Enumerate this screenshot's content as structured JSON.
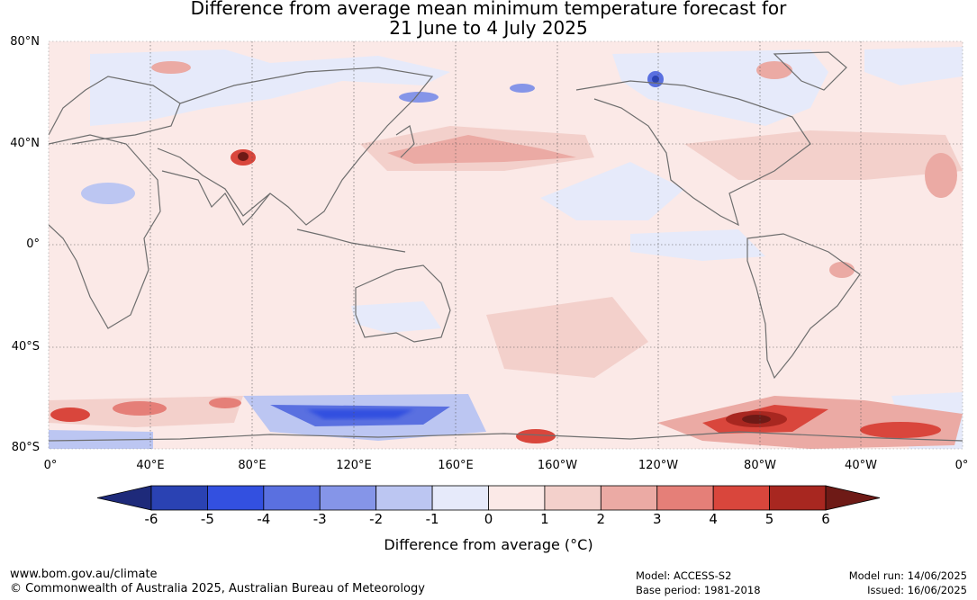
{
  "title": {
    "line1": "Difference from average mean minimum temperature forecast for",
    "line2": "21 June to 4 July 2025"
  },
  "map": {
    "lat_labels": [
      "80°N",
      "40°N",
      "0°",
      "40°S",
      "80°S"
    ],
    "lon_labels": [
      "0°",
      "40°E",
      "80°E",
      "120°E",
      "160°E",
      "160°W",
      "120°W",
      "80°W",
      "40°W",
      "0°"
    ],
    "colors": {
      "ocean_background": "#fbe9e7",
      "coastline": "#6e6e6e",
      "grid": "#555555"
    },
    "anomaly_regions": [
      {
        "name": "Southern Ocean south of Australia",
        "value": -3
      },
      {
        "name": "Southern Ocean south of South America",
        "value": 6
      },
      {
        "name": "South Atlantic near Africa",
        "value": 4
      },
      {
        "name": "Southern Pacific",
        "value": 4
      },
      {
        "name": "North Pacific",
        "value": 2
      },
      {
        "name": "Tibetan Plateau",
        "value": 5
      },
      {
        "name": "Canadian Arctic",
        "value": -3
      },
      {
        "name": "Northern Europe",
        "value": -1
      },
      {
        "name": "Eastern Pacific",
        "value": -1
      }
    ]
  },
  "colorbar": {
    "ticks": [
      "-6",
      "-5",
      "-4",
      "-3",
      "-2",
      "-1",
      "0",
      "1",
      "2",
      "3",
      "4",
      "5",
      "6"
    ],
    "colors": [
      "#1e2a7a",
      "#2a42b3",
      "#3350e0",
      "#5a70e0",
      "#8595e8",
      "#bcc6f2",
      "#e6eafa",
      "#fbe9e7",
      "#f3d0cb",
      "#ebaaa4",
      "#e57f78",
      "#d9463c",
      "#a82720",
      "#6e1a16"
    ],
    "label": "Difference from average (°C)"
  },
  "footer": {
    "website": "www.bom.gov.au/climate",
    "copyright": "© Commonwealth of Australia 2025, Australian Bureau of Meteorology",
    "model": "Model: ACCESS-S2",
    "base_period": "Base period: 1981-2018",
    "model_run": "Model run: 14/06/2025",
    "issued": "Issued: 16/06/2025"
  }
}
